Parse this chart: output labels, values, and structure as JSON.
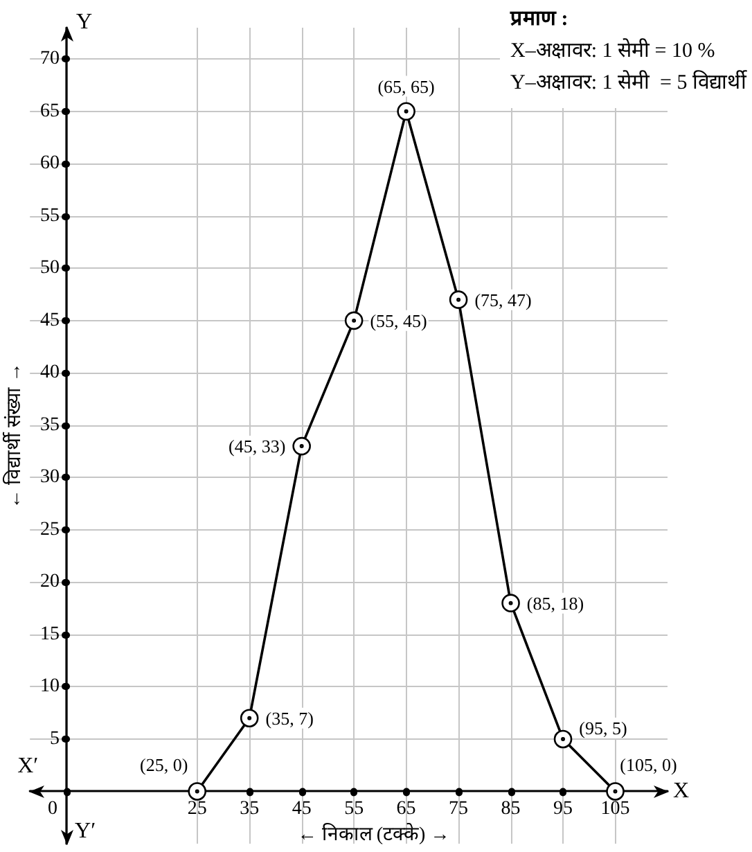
{
  "chart_data": {
    "type": "line",
    "xlabel": "← निकाल (टक्के) →",
    "ylabel": "← विद्यार्थी संख्या →",
    "x": [
      25,
      35,
      45,
      55,
      65,
      75,
      85,
      95,
      105
    ],
    "values": [
      0,
      7,
      33,
      45,
      65,
      47,
      18,
      5,
      0
    ],
    "value_labels": [
      "(25, 0)",
      "(35, 7)",
      "(45, 33)",
      "(55, 45)",
      "(65, 65)",
      "(75, 47)",
      "(85, 18)",
      "(95, 5)",
      "(105, 0)"
    ],
    "color": "#000000",
    "marker": "circle",
    "line_style": "solid",
    "grid": true,
    "xlim": [
      -7,
      115
    ],
    "xticks": [
      0,
      25,
      35,
      45,
      55,
      65,
      75,
      85,
      95,
      105
    ],
    "ylim": [
      -5,
      73
    ],
    "yticks": [
      5,
      10,
      15,
      20,
      25,
      30,
      35,
      40,
      45,
      50,
      55,
      60,
      65,
      70
    ],
    "annotations": [
      "प्रमाण :",
      "X–अक्षावर: 1 सेमी = 10 %",
      "Y–अक्षावर: 1 सेमी  = 5 विद्यार्थी",
      "X",
      "X′",
      "Y",
      "Y′"
    ]
  }
}
